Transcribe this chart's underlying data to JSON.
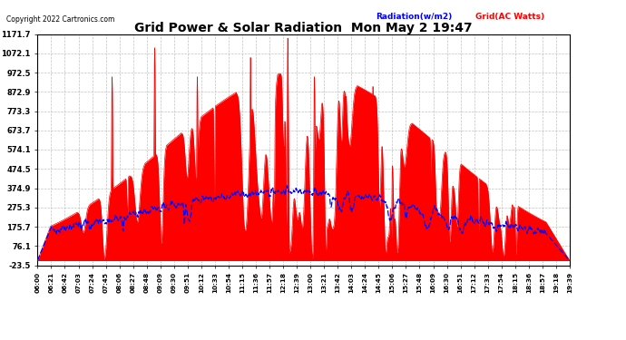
{
  "title": "Grid Power & Solar Radiation  Mon May 2 19:47",
  "copyright": "Copyright 2022 Cartronics.com",
  "legend_radiation": "Radiation(w/m2)",
  "legend_grid": "Grid(AC Watts)",
  "yticks": [
    1171.7,
    1072.1,
    972.5,
    872.9,
    773.3,
    673.7,
    574.1,
    474.5,
    374.9,
    275.3,
    175.7,
    76.1,
    -23.5
  ],
  "ymin": -23.5,
  "ymax": 1171.7,
  "background_color": "#ffffff",
  "plot_bg_color": "#ffffff",
  "grid_color": "#bbbbbb",
  "radiation_color": "#0000ff",
  "grid_ac_color": "#ff0000",
  "fill_color": "#ff0000",
  "xtick_labels": [
    "06:00",
    "06:21",
    "06:42",
    "07:03",
    "07:24",
    "07:45",
    "08:06",
    "08:27",
    "08:48",
    "09:09",
    "09:30",
    "09:51",
    "10:12",
    "10:33",
    "10:54",
    "11:15",
    "11:36",
    "11:57",
    "12:18",
    "12:39",
    "13:00",
    "13:21",
    "13:42",
    "14:03",
    "14:24",
    "14:45",
    "15:06",
    "15:27",
    "15:48",
    "16:09",
    "16:30",
    "16:51",
    "17:12",
    "17:33",
    "17:54",
    "18:15",
    "18:36",
    "18:57",
    "19:18",
    "19:39"
  ]
}
